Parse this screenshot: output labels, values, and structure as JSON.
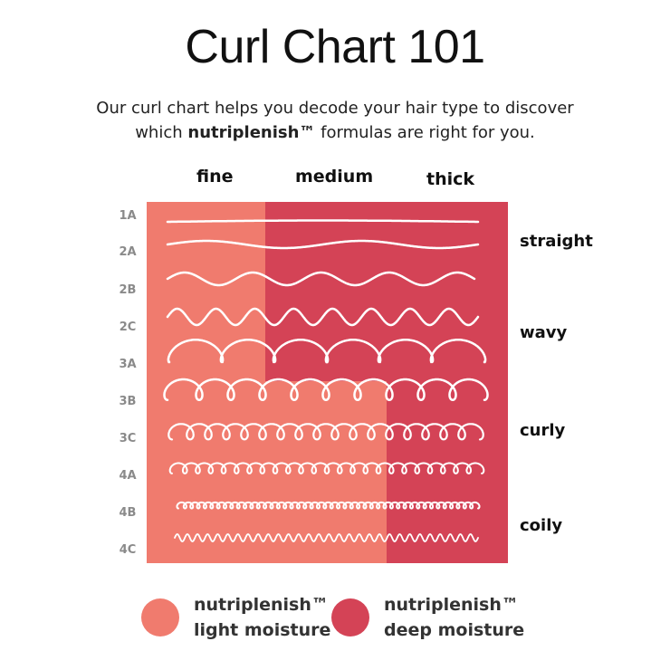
{
  "title": "Curl Chart 101",
  "subtitle": {
    "line1": "Our curl chart helps you decode your hair type to discover",
    "line2_pre": "which ",
    "line2_brand": "nutriplenish™",
    "line2_post": " formulas are right for you."
  },
  "columns": [
    "fine",
    "medium",
    "thick"
  ],
  "rows": [
    "1A",
    "2A",
    "2B",
    "2C",
    "3A",
    "3B",
    "3C",
    "4A",
    "4B",
    "4C"
  ],
  "categories": [
    "straight",
    "wavy",
    "curly",
    "coily"
  ],
  "colors": {
    "light_moisture": "#F07B6E",
    "deep_moisture": "#D44356",
    "curl_line": "#FFFFFF"
  },
  "legend": [
    {
      "line1": "nutriplenish™",
      "line2": "light moisture",
      "color": "#F07B6E"
    },
    {
      "line1": "nutriplenish™",
      "line2": "deep moisture",
      "color": "#D44356"
    }
  ]
}
